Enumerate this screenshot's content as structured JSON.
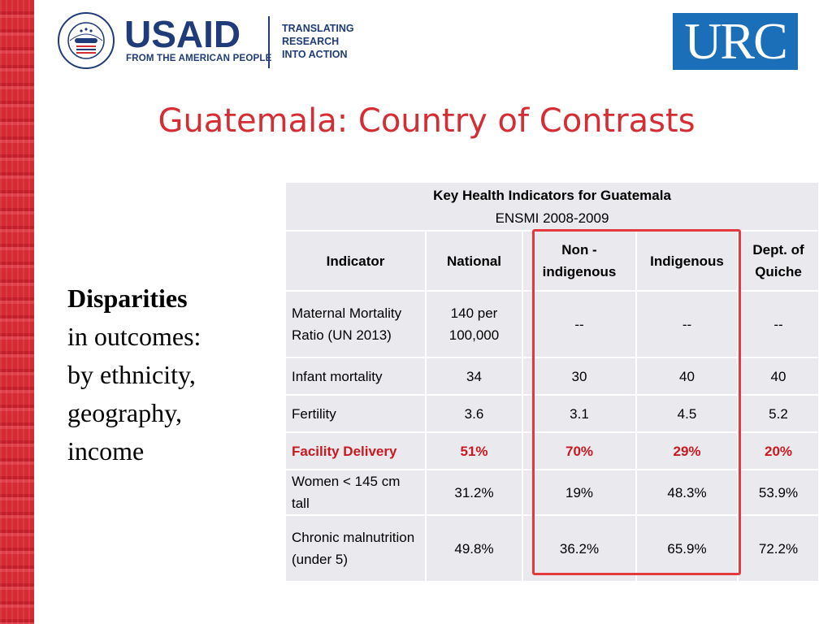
{
  "header": {
    "usaid_word": "USAID",
    "usaid_tagline": "FROM THE AMERICAN PEOPLE",
    "translating_lines": [
      "TRANSLATING",
      "RESEARCH",
      "INTO ACTION"
    ],
    "urc_logo": "URC",
    "seal_text": "UNITED STATES AGENCY INTERNATIONAL DEVELOPMENT"
  },
  "title": "Guatemala: Country of Contrasts",
  "side": {
    "bold": "Disparities",
    "lines": [
      "in outcomes:",
      "by ethnicity,",
      "geography,",
      "income"
    ]
  },
  "table": {
    "caption_title": "Key  Health Indicators for Guatemala",
    "caption_sub": "ENSMI 2008-2009",
    "headers": [
      "Indicator",
      "National",
      "Non - indigenous",
      "Indigenous",
      "Dept. of Quiche"
    ],
    "rows": [
      [
        "Maternal Mortality Ratio (UN 2013)",
        "140 per 100,000",
        "--",
        "--",
        "--"
      ],
      [
        "Infant mortality",
        "34",
        "30",
        "40",
        "40"
      ],
      [
        "Fertility",
        "3.6",
        "3.1",
        "4.5",
        "5.2"
      ],
      [
        "Facility Delivery",
        "51%",
        "70%",
        "29%",
        "20%"
      ],
      [
        "Women  < 145 cm tall",
        "31.2%",
        "19%",
        "48.3%",
        "53.9%"
      ],
      [
        "Chronic malnutrition (under 5)",
        "49.8%",
        "36.2%",
        "65.9%",
        "72.2%"
      ]
    ]
  },
  "colors": {
    "title": "#d42e34",
    "highlight_row": "#c8191f",
    "usaid_blue": "#1f3b7a",
    "urc_blue": "#1b6fb8",
    "highlight_box": "#e23a3e"
  }
}
